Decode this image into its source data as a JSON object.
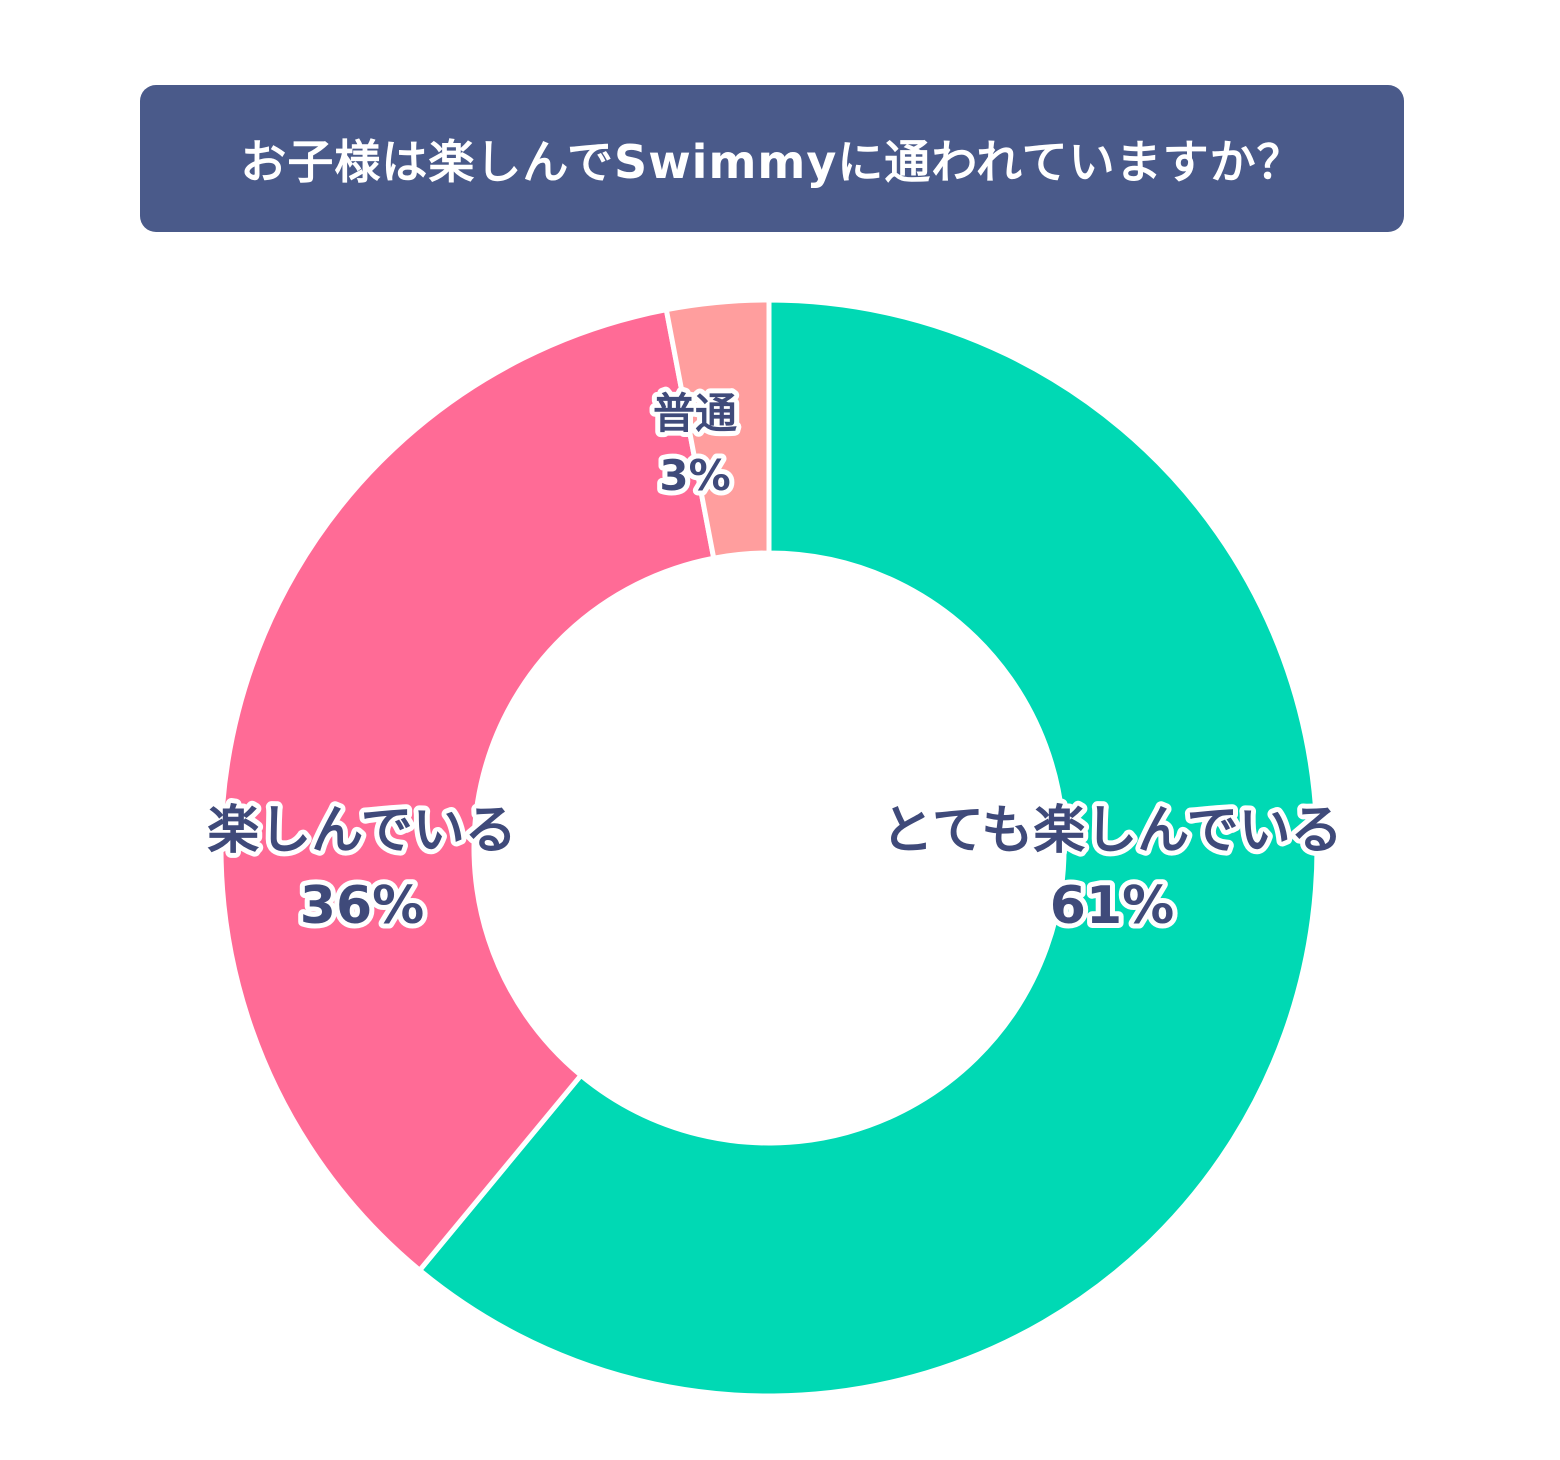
{
  "chart_data": {
    "type": "pie",
    "donut": true,
    "title": "お子様は楽しんでSwimmyに通われていますか？",
    "slices": [
      {
        "label": "とても楽しんでいる",
        "value": 61,
        "value_label": "61%",
        "color": "#00d9b4"
      },
      {
        "label": "楽しんでいる",
        "value": 36,
        "value_label": "36%",
        "color": "#ff6b96"
      },
      {
        "label": "普通",
        "value": 3,
        "value_label": "3%",
        "color": "#ff9e9e"
      }
    ],
    "start": "top",
    "direction": "clockwise",
    "legend": "none"
  }
}
